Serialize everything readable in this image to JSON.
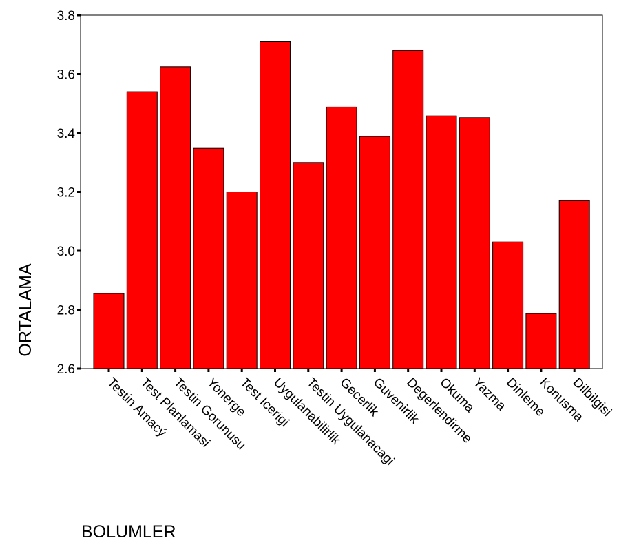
{
  "chart_data": {
    "type": "bar",
    "title": "",
    "xlabel": "BOLUMLER",
    "ylabel": "ORTALAMA",
    "categories": [
      "Testin Amacý",
      "Test Planlamasi",
      "Testin Gorunusu",
      "Yonerge",
      "Test Icerigi",
      "Uygulanabilirlik",
      "Testin Uygulanacagi",
      "Gecerlik",
      "Guvenirlik",
      "Degerlendirme",
      "Okuma",
      "Yazma",
      "Dinleme",
      "Konusma",
      "Dilbilgisi"
    ],
    "values": [
      2.855,
      3.54,
      3.625,
      3.348,
      3.2,
      3.71,
      3.3,
      3.488,
      3.388,
      3.68,
      3.458,
      3.452,
      3.03,
      2.787,
      3.17
    ],
    "ylim": [
      2.6,
      3.8
    ],
    "yticks": [
      "2.6",
      "2.8",
      "3.0",
      "3.2",
      "3.4",
      "3.6",
      "3.8"
    ],
    "grid": false,
    "legend": "none",
    "bar_color": "#ff0000",
    "bar_edge_color": "#000000"
  }
}
